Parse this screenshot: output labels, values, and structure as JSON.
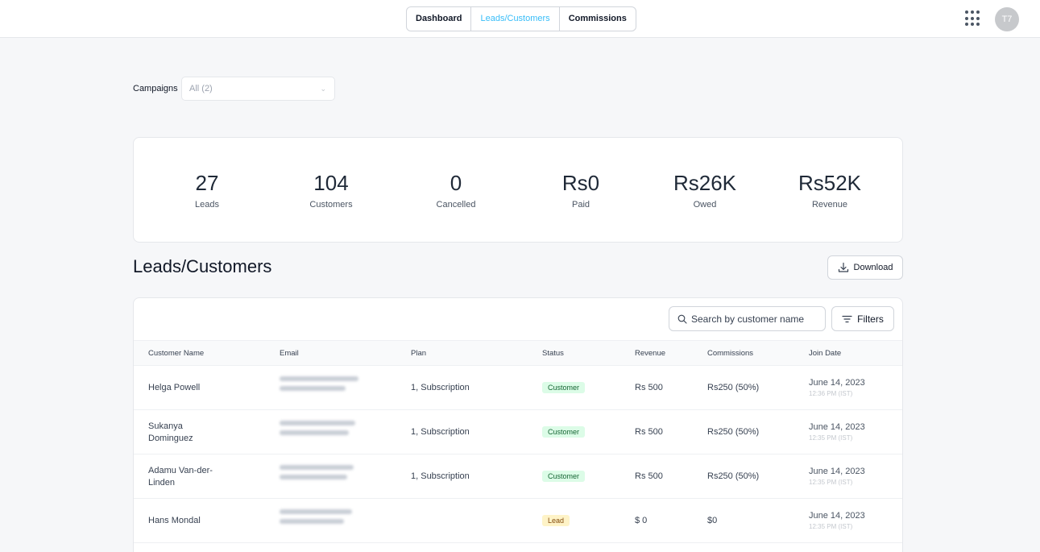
{
  "nav": {
    "tabs": [
      {
        "label": "Dashboard"
      },
      {
        "label": "Leads/Customers"
      },
      {
        "label": "Commissions"
      }
    ],
    "active_color": "#38bdf8"
  },
  "header": {
    "apps_icon": "grid-icon",
    "avatar_initials": "T7"
  },
  "filters": {
    "campaigns_label": "Campaigns",
    "campaigns_value": "All (2)"
  },
  "stats": [
    {
      "value": "27",
      "label": "Leads"
    },
    {
      "value": "104",
      "label": "Customers"
    },
    {
      "value": "0",
      "label": "Cancelled"
    },
    {
      "value": "Rs0",
      "label": "Paid"
    },
    {
      "value": "Rs26K",
      "label": "Owed"
    },
    {
      "value": "Rs52K",
      "label": "Revenue"
    }
  ],
  "section": {
    "title": "Leads/Customers",
    "download_label": "Download"
  },
  "table": {
    "search_placeholder": "Search by customer name",
    "filters_label": "Filters",
    "columns": [
      "Customer Name",
      "Email",
      "Plan",
      "Status",
      "Revenue",
      "Commissions",
      "Join Date"
    ],
    "rows": [
      {
        "name": "Helga Powell",
        "plan": "1, Subscription",
        "status": "Customer",
        "revenue": "Rs 500",
        "commission": "Rs250 (50%)",
        "date": "June 14, 2023",
        "time": "12:36 PM (IST)"
      },
      {
        "name": "Sukanya Dominguez",
        "plan": "1, Subscription",
        "status": "Customer",
        "revenue": "Rs 500",
        "commission": "Rs250 (50%)",
        "date": "June 14, 2023",
        "time": "12:35 PM (IST)"
      },
      {
        "name": "Adamu Van-der-Linden",
        "plan": "1, Subscription",
        "status": "Customer",
        "revenue": "Rs 500",
        "commission": "Rs250 (50%)",
        "date": "June 14, 2023",
        "time": "12:35 PM (IST)"
      },
      {
        "name": "Hans Mondal",
        "plan": "",
        "status": "Lead",
        "revenue": "$ 0",
        "commission": "$0",
        "date": "June 14, 2023",
        "time": "12:35 PM (IST)"
      }
    ]
  },
  "colors": {
    "customer_badge_bg": "#dcfce7",
    "lead_badge_bg": "#fef3c7"
  }
}
